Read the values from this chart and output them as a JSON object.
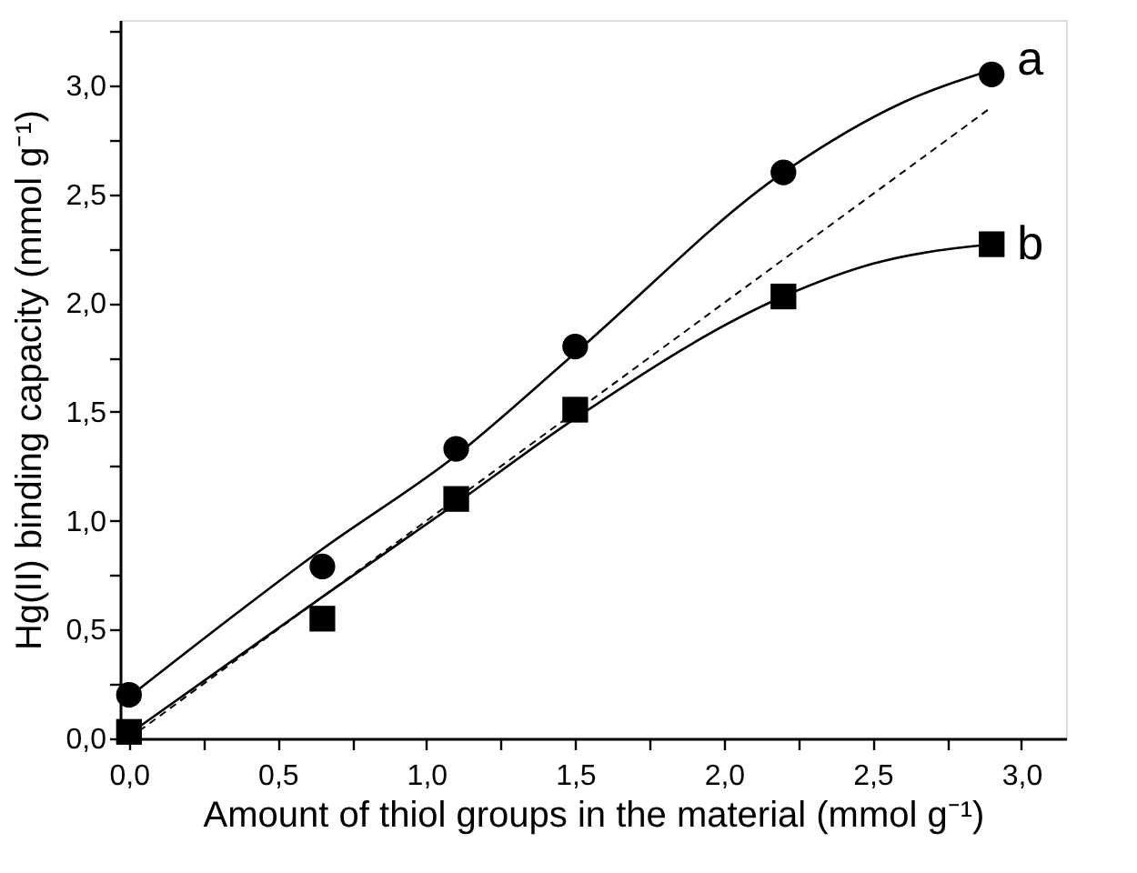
{
  "chart_data": {
    "type": "scatter",
    "xlabel": "Amount of thiol groups in the material (mmol g⁻¹)",
    "ylabel": "Hg(II) binding capacity (mmol g⁻¹)",
    "xlim": [
      -0.03,
      3.15
    ],
    "ylim": [
      0,
      3.3
    ],
    "xticks": [
      {
        "value": 0,
        "label": "0,0"
      },
      {
        "value": 0.25,
        "label": null
      },
      {
        "value": 0.5,
        "label": "0,5"
      },
      {
        "value": 0.75,
        "label": null
      },
      {
        "value": 1,
        "label": "1,0"
      },
      {
        "value": 1.25,
        "label": null
      },
      {
        "value": 1.5,
        "label": "1,5"
      },
      {
        "value": 1.75,
        "label": null
      },
      {
        "value": 2,
        "label": "2,0"
      },
      {
        "value": 2.25,
        "label": null
      },
      {
        "value": 2.5,
        "label": "2,5"
      },
      {
        "value": 2.75,
        "label": null
      },
      {
        "value": 3,
        "label": "3,0"
      }
    ],
    "yticks": [
      {
        "value": 0,
        "label": "0,0"
      },
      {
        "value": 0.25,
        "label": null
      },
      {
        "value": 0.5,
        "label": "0,5"
      },
      {
        "value": 0.75,
        "label": null
      },
      {
        "value": 1,
        "label": "1,0"
      },
      {
        "value": 1.25,
        "label": null
      },
      {
        "value": 1.5,
        "label": "1,5"
      },
      {
        "value": 1.75,
        "label": null
      },
      {
        "value": 2,
        "label": "2,0"
      },
      {
        "value": 2.25,
        "label": null
      },
      {
        "value": 2.5,
        "label": "2,5"
      },
      {
        "value": 2.75,
        "label": null
      },
      {
        "value": 3,
        "label": "3,0"
      },
      {
        "value": 3.25,
        "label": null
      }
    ],
    "grid": false,
    "series": [
      {
        "type": "line",
        "color": "#000000",
        "line_style": "solid",
        "marker": "none",
        "x": [
          0,
          0.65,
          1.1,
          1.5,
          2.2,
          2.6,
          2.9
        ],
        "values": [
          0.19,
          0.87,
          1.3,
          1.77,
          2.6,
          2.92,
          3.07
        ]
      },
      {
        "type": "line",
        "color": "#000000",
        "line_style": "solid",
        "marker": "none",
        "x": [
          0,
          0.65,
          1.1,
          1.5,
          2.2,
          2.5,
          2.9
        ],
        "values": [
          0.02,
          0.65,
          1.08,
          1.47,
          2.03,
          2.18,
          2.27
        ]
      },
      {
        "type": "line",
        "color": "#000000",
        "line_style": "dashed",
        "marker": "none",
        "x": [
          0,
          2.9
        ],
        "values": [
          0,
          2.9
        ]
      },
      {
        "name": "a",
        "color": "#000000",
        "marker": "circle",
        "x": [
          0,
          0.65,
          1.1,
          1.5,
          2.2,
          2.9
        ],
        "values": [
          0.2,
          0.79,
          1.33,
          1.8,
          2.6,
          3.05
        ]
      },
      {
        "name": "b",
        "color": "#000000",
        "marker": "square",
        "x": [
          0,
          0.65,
          1.1,
          1.5,
          2.2,
          2.9
        ],
        "values": [
          0.03,
          0.55,
          1.1,
          1.51,
          2.03,
          2.27
        ]
      }
    ]
  }
}
